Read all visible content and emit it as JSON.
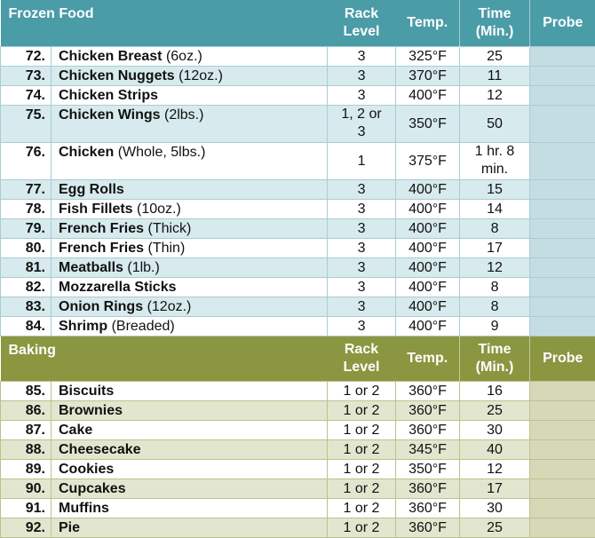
{
  "sections": [
    {
      "key": "frozen",
      "title": "Frozen Food",
      "headers": {
        "rack": "Rack Level",
        "temp": "Temp.",
        "time": "Time (Min.)",
        "probe": "Probe"
      },
      "rows": [
        {
          "num": "72.",
          "name": "Chicken Breast",
          "note": "(6oz.)",
          "rack": "3",
          "temp": "325°F",
          "time": "25"
        },
        {
          "num": "73.",
          "name": "Chicken Nuggets",
          "note": "(12oz.)",
          "rack": "3",
          "temp": "370°F",
          "time": "11"
        },
        {
          "num": "74.",
          "name": "Chicken Strips",
          "note": "",
          "rack": "3",
          "temp": "400°F",
          "time": "12"
        },
        {
          "num": "75.",
          "name": "Chicken Wings",
          "note": "(2lbs.)",
          "rack": "1, 2 or 3",
          "temp": "350°F",
          "time": "50"
        },
        {
          "num": "76.",
          "name": "Chicken",
          "note": "(Whole, 5lbs.)",
          "rack": "1",
          "temp": "375°F",
          "time": "1 hr. 8 min."
        },
        {
          "num": "77.",
          "name": "Egg Rolls",
          "note": "",
          "rack": "3",
          "temp": "400°F",
          "time": "15"
        },
        {
          "num": "78.",
          "name": "Fish Fillets",
          "note": "(10oz.)",
          "rack": "3",
          "temp": "400°F",
          "time": "14"
        },
        {
          "num": "79.",
          "name": "French Fries",
          "note": "(Thick)",
          "rack": "3",
          "temp": "400°F",
          "time": "8"
        },
        {
          "num": "80.",
          "name": "French Fries",
          "note": "(Thin)",
          "rack": "3",
          "temp": "400°F",
          "time": "17"
        },
        {
          "num": "81.",
          "name": "Meatballs",
          "note": "(1lb.)",
          "rack": "3",
          "temp": "400°F",
          "time": "12"
        },
        {
          "num": "82.",
          "name": "Mozzarella Sticks",
          "note": "",
          "rack": "3",
          "temp": "400°F",
          "time": "8"
        },
        {
          "num": "83.",
          "name": "Onion Rings",
          "note": "(12oz.)",
          "rack": "3",
          "temp": "400°F",
          "time": "8"
        },
        {
          "num": "84.",
          "name": "Shrimp",
          "note": "(Breaded)",
          "rack": "3",
          "temp": "400°F",
          "time": "9"
        }
      ]
    },
    {
      "key": "baking",
      "title": "Baking",
      "headers": {
        "rack": "Rack Level",
        "temp": "Temp.",
        "time": "Time (Min.)",
        "probe": "Probe"
      },
      "rows": [
        {
          "num": "85.",
          "name": "Biscuits",
          "note": "",
          "rack": "1 or 2",
          "temp": "360°F",
          "time": "16"
        },
        {
          "num": "86.",
          "name": "Brownies",
          "note": "",
          "rack": "1 or 2",
          "temp": "360°F",
          "time": "25"
        },
        {
          "num": "87.",
          "name": "Cake",
          "note": "",
          "rack": "1 or 2",
          "temp": "360°F",
          "time": "30"
        },
        {
          "num": "88.",
          "name": "Cheesecake",
          "note": "",
          "rack": "1 or 2",
          "temp": "345°F",
          "time": "40"
        },
        {
          "num": "89.",
          "name": "Cookies",
          "note": "",
          "rack": "1 or 2",
          "temp": "350°F",
          "time": "12"
        },
        {
          "num": "90.",
          "name": "Cupcakes",
          "note": "",
          "rack": "1 or 2",
          "temp": "360°F",
          "time": "17"
        },
        {
          "num": "91.",
          "name": "Muffins",
          "note": "",
          "rack": "1 or 2",
          "temp": "360°F",
          "time": "30"
        },
        {
          "num": "92.",
          "name": "Pie",
          "note": "",
          "rack": "1 or 2",
          "temp": "360°F",
          "time": "25"
        }
      ]
    }
  ],
  "colors": {
    "frozen_header": "#4a9ca7",
    "frozen_alt": "#d7eaed",
    "baking_header": "#8b9641",
    "baking_alt": "#e3e6cf"
  }
}
